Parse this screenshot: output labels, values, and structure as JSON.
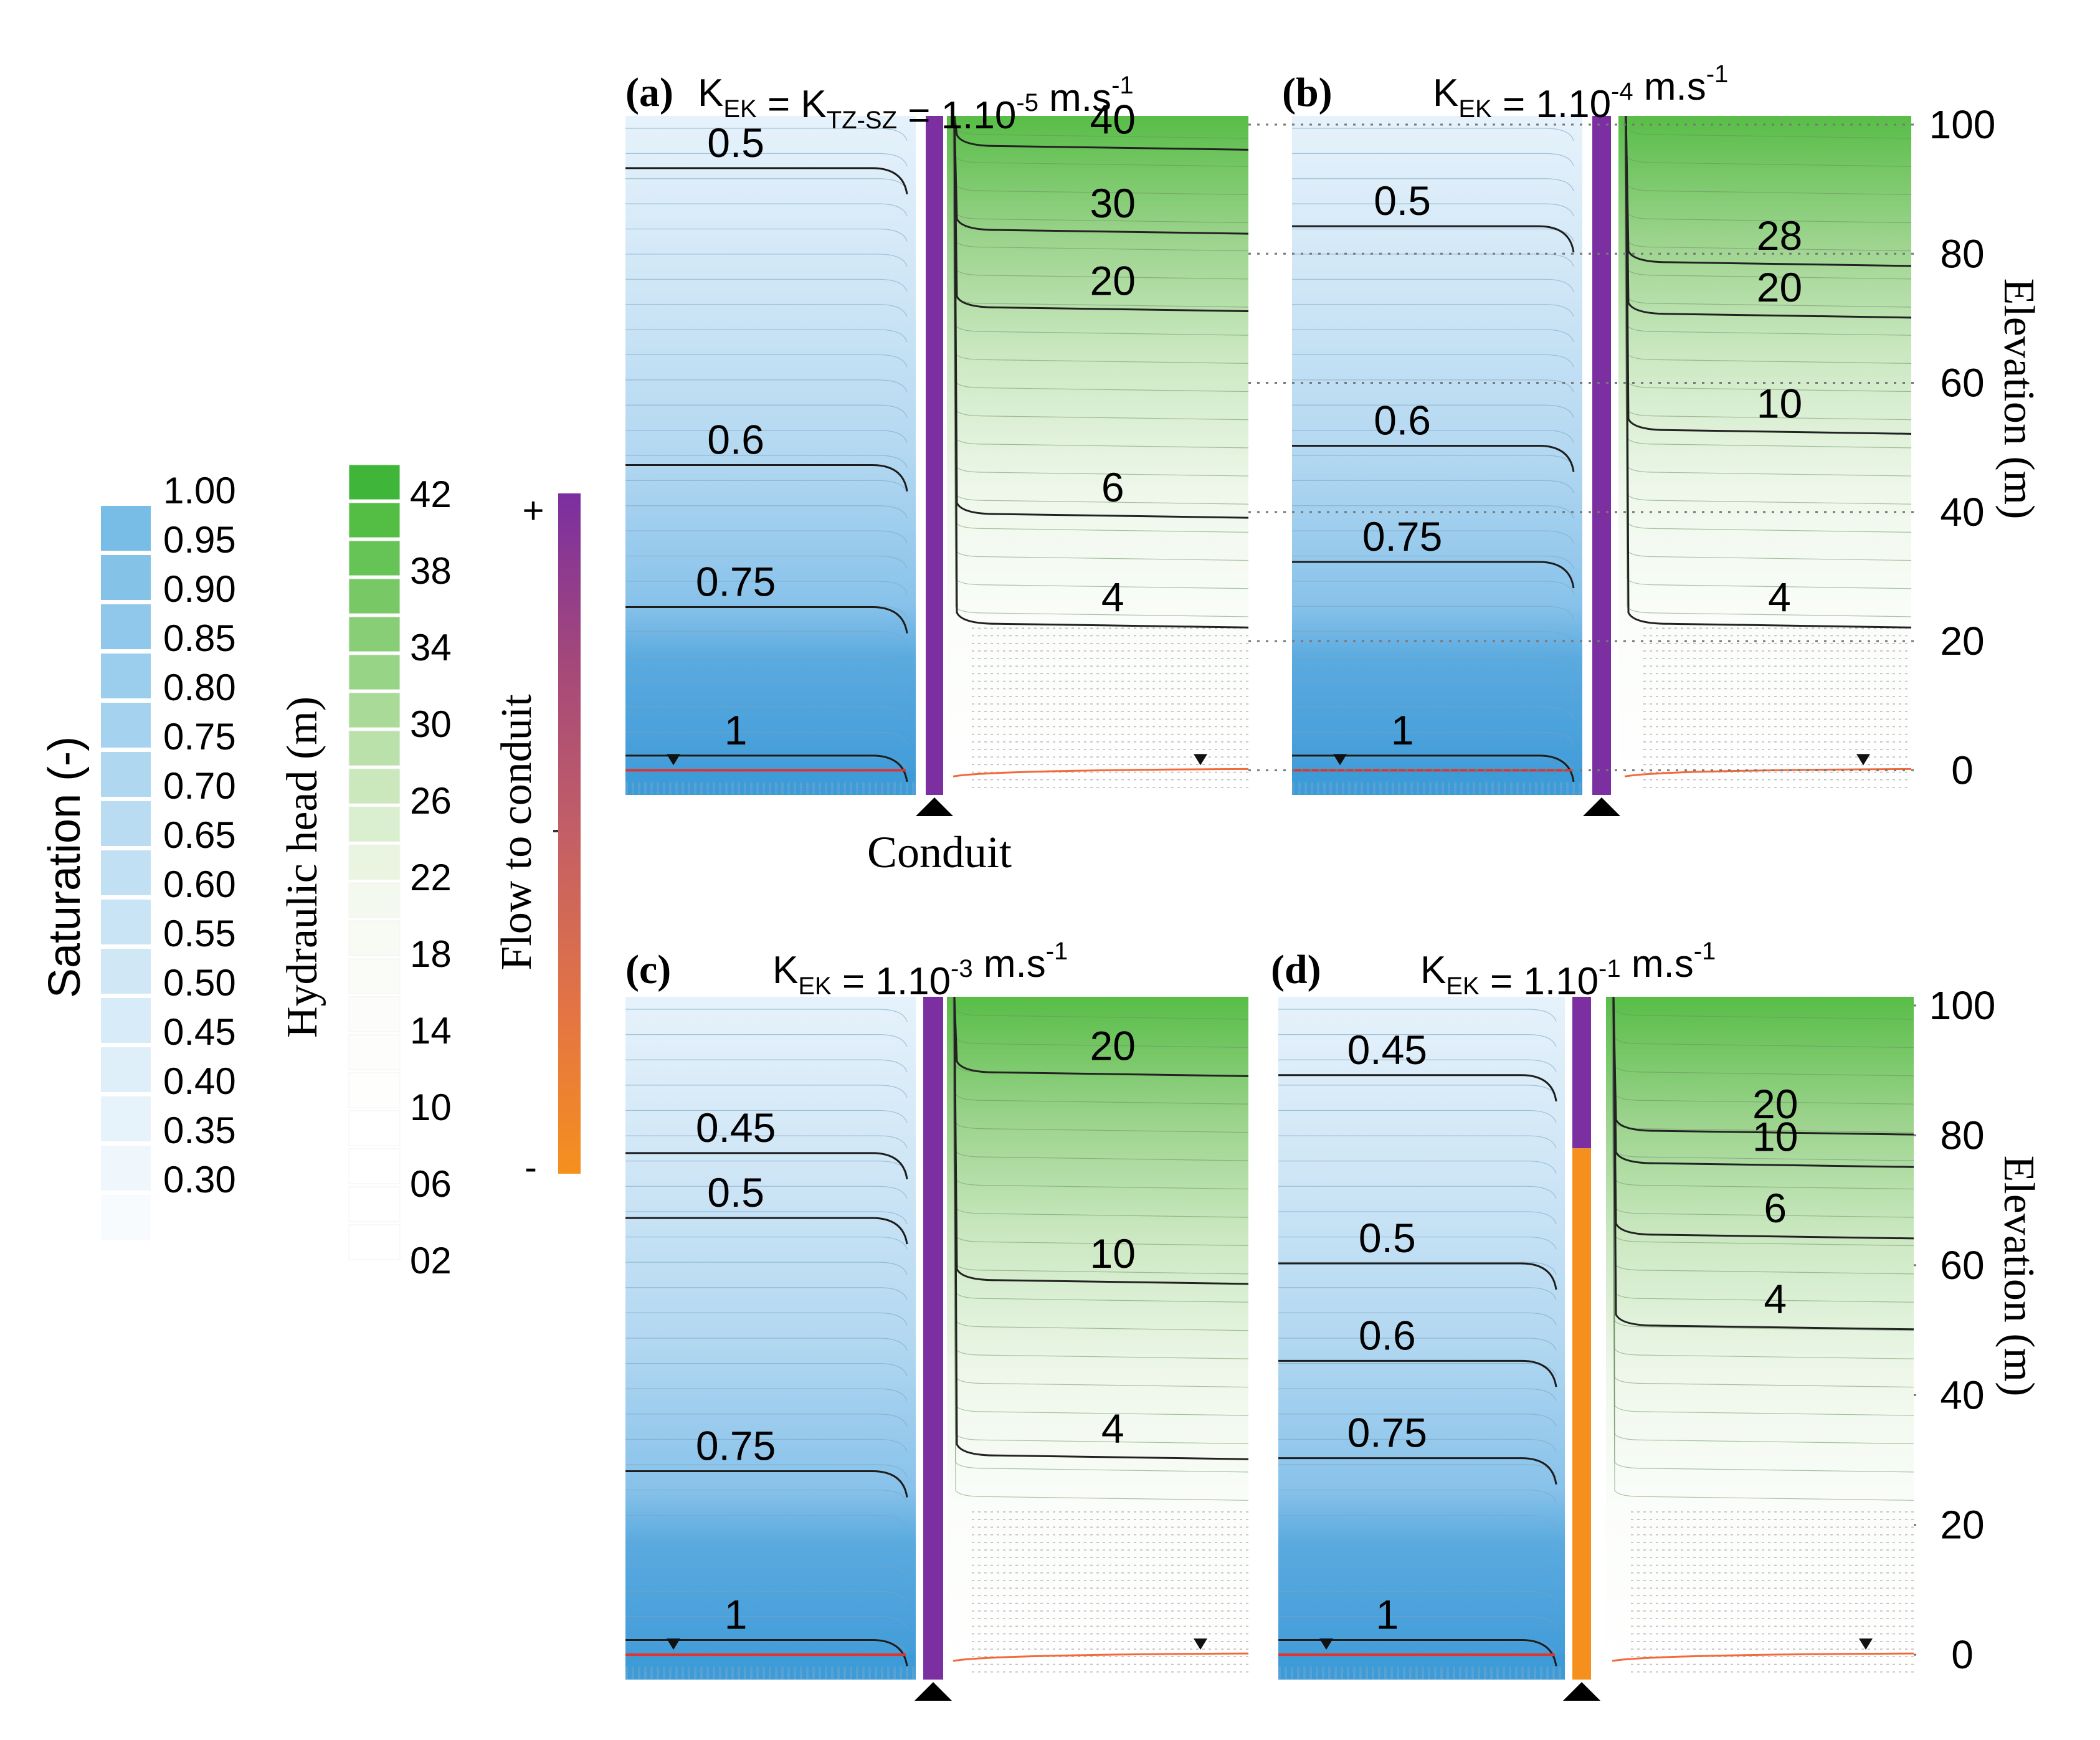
{
  "chart_data": {
    "type": "heatmap",
    "figure_kind": "contour panels (saturation left of conduit, hydraulic head right of conduit)",
    "legends": {
      "saturation": {
        "title": "Saturation (-)",
        "labels": [
          "1.00",
          "0.95",
          "0.90",
          "0.85",
          "0.80",
          "0.75",
          "0.70",
          "0.65",
          "0.60",
          "0.55",
          "0.50",
          "0.45",
          "0.40",
          "0.35",
          "0.30"
        ],
        "colors": [
          "#78bde6",
          "#84c2e8",
          "#8fc8ea",
          "#9bcdec",
          "#a5d3ef",
          "#afd7f0",
          "#b9dcf2",
          "#c2e0f3",
          "#c9e4f5",
          "#d0e7f6",
          "#d7ebf8",
          "#dfeff9",
          "#e7f3fb",
          "#eff7fc",
          "#f8fbfe"
        ]
      },
      "head": {
        "title": "Hydraulic head (m)",
        "labels": [
          "42",
          "38",
          "34",
          "30",
          "26",
          "22",
          "18",
          "14",
          "10",
          "06",
          "02"
        ],
        "colors": [
          "#3fb63a",
          "#54bd44",
          "#66c355",
          "#78c865",
          "#88ce76",
          "#98d486",
          "#a9da98",
          "#bae1aa",
          "#cae8bc",
          "#daefcf",
          "#e9f5e1",
          "#f3f9ee",
          "#f7fbf3",
          "#fafcf8",
          "#fcfdfa",
          "#fdfdfb",
          "#fefefd",
          "#ffffff",
          "#ffffff",
          "#ffffff",
          "#ffffff"
        ]
      },
      "flow": {
        "title": "Flow to conduit",
        "plus": "+",
        "minus": "-",
        "colors": [
          "#7b2fa0",
          "#a4487a",
          "#c35f66",
          "#e27345",
          "#f5901e"
        ]
      }
    },
    "axes": {
      "elevation_label": "Elevation (m)",
      "ticks": [
        "100",
        "80",
        "60",
        "40",
        "20",
        "0"
      ],
      "ylim": [
        0,
        100
      ],
      "conduit_label": "Conduit"
    },
    "panels": [
      {
        "label": "(a)",
        "title_parts": [
          "K",
          "EK",
          "= K",
          "TZ-SZ",
          "= 1.10",
          "-5",
          "m.s",
          "-1"
        ],
        "sat_contours": [
          {
            "label": "0.5",
            "elev": 95
          },
          {
            "label": "0.6",
            "elev": 49
          },
          {
            "label": "0.75",
            "elev": 27
          },
          {
            "label": "1",
            "elev": 4
          }
        ],
        "head_contours": [
          {
            "label": "40",
            "elev": 102
          },
          {
            "label": "30",
            "elev": 86
          },
          {
            "label": "20",
            "elev": 74
          },
          {
            "label": "6",
            "elev": 42
          },
          {
            "label": "4",
            "elev": 25
          }
        ],
        "conduit_flow": "positive"
      },
      {
        "label": "(b)",
        "title_parts": [
          "K",
          "EK",
          "= 1.10",
          "-4",
          "m.s",
          "-1"
        ],
        "sat_contours": [
          {
            "label": "0.5",
            "elev": 86
          },
          {
            "label": "0.6",
            "elev": 52
          },
          {
            "label": "0.75",
            "elev": 34
          },
          {
            "label": "1",
            "elev": 4
          }
        ],
        "head_contours": [
          {
            "label": "28",
            "elev": 81
          },
          {
            "label": "20",
            "elev": 73
          },
          {
            "label": "10",
            "elev": 55
          },
          {
            "label": "4",
            "elev": 25
          }
        ],
        "conduit_flow": "positive"
      },
      {
        "label": "(c)",
        "title_parts": [
          "K",
          "EK",
          "= 1.10",
          "-3",
          "m.s",
          "-1"
        ],
        "sat_contours": [
          {
            "label": "0.45",
            "elev": 79
          },
          {
            "label": "0.5",
            "elev": 69
          },
          {
            "label": "0.75",
            "elev": 30
          },
          {
            "label": "1",
            "elev": 4
          }
        ],
        "head_contours": [
          {
            "label": "20",
            "elev": 92
          },
          {
            "label": "10",
            "elev": 60
          },
          {
            "label": "4",
            "elev": 33
          }
        ],
        "conduit_flow": "positive"
      },
      {
        "label": "(d)",
        "title_parts": [
          "K",
          "EK",
          "= 1.10",
          "-1",
          "m.s",
          "-1"
        ],
        "sat_contours": [
          {
            "label": "0.45",
            "elev": 91
          },
          {
            "label": "0.5",
            "elev": 62
          },
          {
            "label": "0.6",
            "elev": 47
          },
          {
            "label": "0.75",
            "elev": 32
          },
          {
            "label": "1",
            "elev": 4
          }
        ],
        "head_contours": [
          {
            "label": "20",
            "elev": 83
          },
          {
            "label": "10",
            "elev": 78
          },
          {
            "label": "6",
            "elev": 67
          },
          {
            "label": "4",
            "elev": 53
          }
        ],
        "conduit_flow": "mixed",
        "conduit_switch_elev": 78
      }
    ]
  }
}
